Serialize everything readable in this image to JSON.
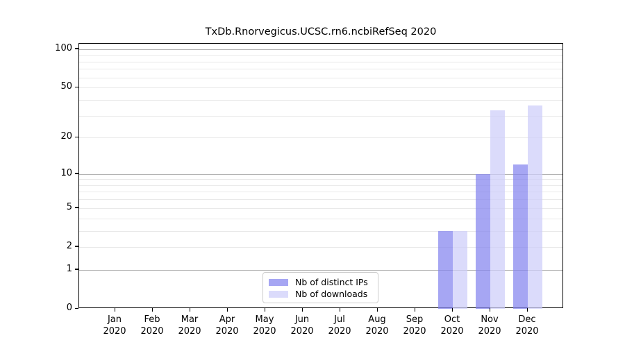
{
  "chart_data": {
    "type": "bar",
    "title": "TxDb.Rnorvegicus.UCSC.rn6.ncbiRefSeq 2020",
    "x_tick_months": [
      "Jan",
      "Feb",
      "Mar",
      "Apr",
      "May",
      "Jun",
      "Jul",
      "Aug",
      "Sep",
      "Oct",
      "Nov",
      "Dec"
    ],
    "x_tick_year": "2020",
    "y_scale": "log1p",
    "ylim": [
      0,
      110
    ],
    "y_ticks": [
      0,
      1,
      2,
      5,
      10,
      20,
      50,
      100
    ],
    "y_major_gridlines": [
      1,
      10,
      100
    ],
    "y_minor_gridlines": [
      2,
      3,
      4,
      5,
      6,
      7,
      8,
      9,
      20,
      30,
      40,
      50,
      60,
      70,
      80,
      90
    ],
    "grid": "on",
    "legend_position": "bottom-center",
    "series": [
      {
        "name": "Nb of distinct IPs",
        "fill": "#8484EEB8",
        "values": [
          0,
          0,
          0,
          0,
          0,
          0,
          0,
          0,
          0,
          3,
          10,
          12
        ]
      },
      {
        "name": "Nb of downloads",
        "fill": "#CDCDF9B8",
        "values": [
          0,
          0,
          0,
          0,
          0,
          0,
          0,
          0,
          0,
          3,
          33,
          36
        ]
      }
    ],
    "colors": {
      "major_grid": "#b2b2b2",
      "minor_grid": "#e9e9e9",
      "axis": "#000000",
      "legend_border": "#cccccc"
    }
  }
}
